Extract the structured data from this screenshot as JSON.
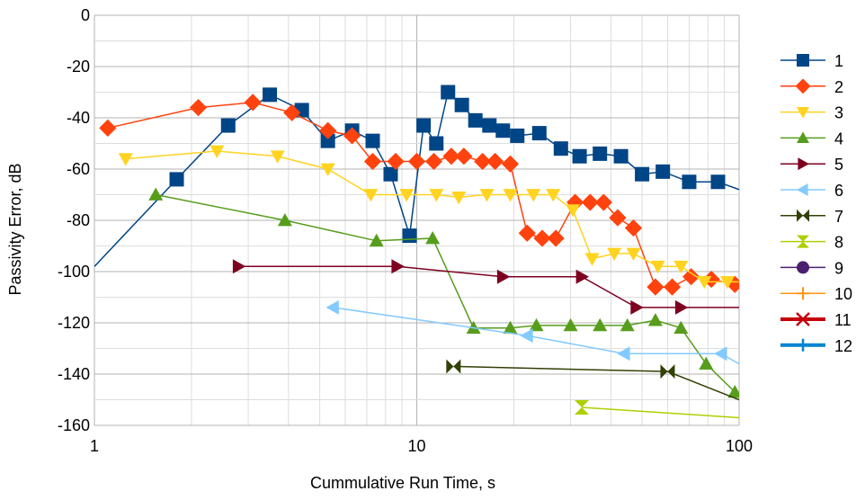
{
  "chart_data": {
    "type": "scatter",
    "xlabel": "Cummulative Run Time, s",
    "ylabel": "Passivity Error, dB",
    "xscale": "log",
    "xlim": [
      1,
      100
    ],
    "ylim": [
      -160,
      0
    ],
    "x_ticks": [
      1,
      10,
      100
    ],
    "y_ticks": [
      0,
      -20,
      -40,
      -60,
      -80,
      -100,
      -120,
      -140,
      -160
    ],
    "x_tick_labels": [
      "1",
      "10",
      "100"
    ],
    "y_tick_labels": [
      "0",
      "-20",
      "-40",
      "-60",
      "-80",
      "-100",
      "-120",
      "-140",
      "-160"
    ],
    "grid": "major and minor",
    "legend_position": "right",
    "series": [
      {
        "name": "1",
        "color": "#004586",
        "marker": "square",
        "points": [
          [
            1,
            -98
          ],
          [
            1.8,
            -64
          ],
          [
            2.6,
            -43
          ],
          [
            3.5,
            -31
          ],
          [
            4.4,
            -37
          ],
          [
            5.3,
            -49
          ],
          [
            6.3,
            -45
          ],
          [
            7.3,
            -49
          ],
          [
            8.3,
            -62
          ],
          [
            9.5,
            -86
          ],
          [
            10.5,
            -43
          ],
          [
            11.5,
            -50
          ],
          [
            12.5,
            -30
          ],
          [
            13.8,
            -35
          ],
          [
            15.2,
            -41
          ],
          [
            16.8,
            -43
          ],
          [
            18.5,
            -45
          ],
          [
            20.5,
            -47
          ],
          [
            24,
            -46
          ],
          [
            28,
            -52
          ],
          [
            32,
            -55
          ],
          [
            37,
            -54
          ],
          [
            43,
            -55
          ],
          [
            50,
            -62
          ],
          [
            58,
            -61
          ],
          [
            70,
            -65
          ],
          [
            86,
            -65
          ],
          [
            100,
            -68
          ]
        ]
      },
      {
        "name": "2",
        "color": "#ff420e",
        "marker": "diamond",
        "points": [
          [
            1.1,
            -44
          ],
          [
            2.1,
            -36
          ],
          [
            3.1,
            -34
          ],
          [
            4.1,
            -38
          ],
          [
            5.3,
            -45
          ],
          [
            6.3,
            -47
          ],
          [
            7.3,
            -57
          ],
          [
            8.6,
            -57
          ],
          [
            10,
            -57
          ],
          [
            11.3,
            -57
          ],
          [
            12.8,
            -55
          ],
          [
            14,
            -55
          ],
          [
            16,
            -57
          ],
          [
            17.5,
            -57
          ],
          [
            19.5,
            -58
          ],
          [
            22,
            -85
          ],
          [
            24.5,
            -87
          ],
          [
            27,
            -87
          ],
          [
            31,
            -73
          ],
          [
            34.5,
            -73
          ],
          [
            38,
            -73
          ],
          [
            42,
            -79
          ],
          [
            47,
            -83
          ],
          [
            55,
            -106
          ],
          [
            62,
            -106
          ],
          [
            71,
            -102
          ],
          [
            82,
            -103
          ],
          [
            97,
            -105
          ]
        ]
      },
      {
        "name": "3",
        "color": "#ffd320",
        "marker": "triangle-down",
        "points": [
          [
            1.25,
            -56
          ],
          [
            2.4,
            -53
          ],
          [
            3.7,
            -55
          ],
          [
            5.3,
            -60
          ],
          [
            7.2,
            -70
          ],
          [
            9.3,
            -70
          ],
          [
            11.5,
            -70
          ],
          [
            13.5,
            -71
          ],
          [
            16.5,
            -70
          ],
          [
            19.5,
            -70
          ],
          [
            23,
            -70
          ],
          [
            26.5,
            -70
          ],
          [
            30.5,
            -76
          ],
          [
            35,
            -95
          ],
          [
            41,
            -93
          ],
          [
            47,
            -93
          ],
          [
            56,
            -98
          ],
          [
            66,
            -98
          ],
          [
            78,
            -104
          ],
          [
            92,
            -104
          ],
          [
            100,
            -104
          ]
        ]
      },
      {
        "name": "4",
        "color": "#579d1c",
        "marker": "triangle-up",
        "points": [
          [
            1.55,
            -70
          ],
          [
            3.9,
            -80
          ],
          [
            7.5,
            -88
          ],
          [
            11.2,
            -87
          ],
          [
            15,
            -122
          ],
          [
            19.5,
            -122
          ],
          [
            23.5,
            -121
          ],
          [
            30,
            -121
          ],
          [
            37,
            -121
          ],
          [
            45,
            -121
          ],
          [
            55,
            -119
          ],
          [
            66,
            -122
          ],
          [
            79,
            -136
          ],
          [
            97,
            -147
          ],
          [
            100,
            -148
          ]
        ]
      },
      {
        "name": "5",
        "color": "#7e0021",
        "marker": "triangle-right",
        "points": [
          [
            2.8,
            -98
          ],
          [
            8.7,
            -98
          ],
          [
            18.5,
            -102
          ],
          [
            32.5,
            -102
          ],
          [
            48,
            -114
          ],
          [
            66,
            -114
          ],
          [
            100,
            -114
          ]
        ]
      },
      {
        "name": "6",
        "color": "#83caff",
        "marker": "triangle-left",
        "points": [
          [
            5.5,
            -114
          ],
          [
            22,
            -125
          ],
          [
            44,
            -132
          ],
          [
            88,
            -132
          ],
          [
            100,
            -136
          ]
        ]
      },
      {
        "name": "7",
        "color": "#314004",
        "marker": "bowtie",
        "points": [
          [
            13,
            -137
          ],
          [
            60,
            -139
          ],
          [
            100,
            -150
          ]
        ]
      },
      {
        "name": "8",
        "color": "#aecf00",
        "marker": "hourglass",
        "points": [
          [
            32.5,
            -153
          ],
          [
            100,
            -157
          ]
        ]
      },
      {
        "name": "9",
        "color": "#4b1f6f",
        "marker": "circle",
        "points": []
      },
      {
        "name": "10",
        "color": "#ff950e",
        "marker": "star",
        "points": []
      },
      {
        "name": "11",
        "color": "#c5000b",
        "marker": "x",
        "points": []
      },
      {
        "name": "12",
        "color": "#0084d1",
        "marker": "plus",
        "points": []
      }
    ]
  }
}
